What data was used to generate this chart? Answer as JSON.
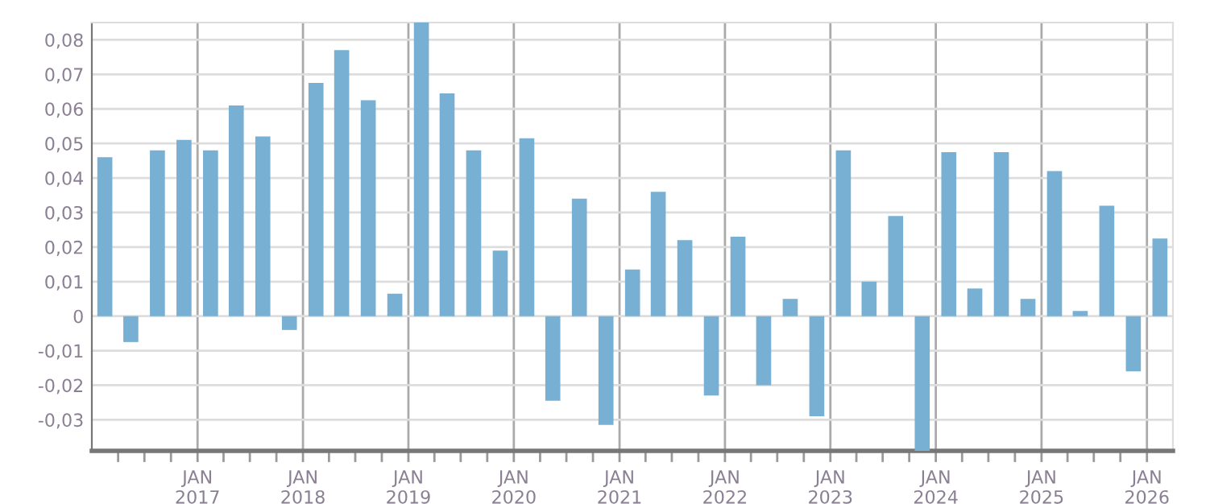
{
  "chart_data": {
    "type": "bar",
    "x": [
      "2016-02-15",
      "2016-05-15",
      "2016-08-15",
      "2016-11-15",
      "2017-02-15",
      "2017-05-15",
      "2017-08-15",
      "2017-11-15",
      "2018-02-15",
      "2018-05-15",
      "2018-08-15",
      "2018-11-15",
      "2019-02-15",
      "2019-05-15",
      "2019-08-15",
      "2019-11-15",
      "2020-02-15",
      "2020-05-15",
      "2020-08-15",
      "2020-11-15",
      "2021-02-15",
      "2021-05-15",
      "2021-08-15",
      "2021-11-15",
      "2022-02-15",
      "2022-05-15",
      "2022-08-15",
      "2022-11-15",
      "2023-02-15",
      "2023-05-15",
      "2023-08-15",
      "2023-11-15",
      "2024-02-15",
      "2024-05-15",
      "2024-08-15",
      "2024-11-15",
      "2025-02-15",
      "2025-05-15",
      "2025-08-15",
      "2025-11-15",
      "2026-02-15"
    ],
    "series": [
      {
        "color": "#77b0d2",
        "values": [
          0.046,
          -0.0075,
          0.048,
          0.051,
          0.048,
          0.061,
          0.052,
          -0.004,
          0.0675,
          0.077,
          0.0625,
          0.0065,
          0.085,
          0.0645,
          0.048,
          0.019,
          0.0515,
          -0.0245,
          0.034,
          -0.0315,
          0.0135,
          0.036,
          0.022,
          -0.023,
          0.023,
          -0.02,
          0.005,
          -0.029,
          0.048,
          0.01,
          0.029,
          -0.039,
          0.0475,
          0.008,
          0.0475,
          0.005,
          0.042,
          0.0015,
          0.032,
          -0.016,
          0.0225
        ]
      }
    ],
    "xlim": [
      "2016-01-01",
      "2026-04-01"
    ],
    "xticks": [
      {
        "value": "2016-04-01",
        "label": null
      },
      {
        "value": "2016-07-01",
        "label": null
      },
      {
        "value": "2016-10-01",
        "label": null
      },
      {
        "value": "2017-01-01",
        "label": "JAN\n2017"
      },
      {
        "value": "2017-04-01",
        "label": null
      },
      {
        "value": "2017-07-01",
        "label": null
      },
      {
        "value": "2017-10-01",
        "label": null
      },
      {
        "value": "2018-01-01",
        "label": "JAN\n2018"
      },
      {
        "value": "2018-04-01",
        "label": null
      },
      {
        "value": "2018-07-01",
        "label": null
      },
      {
        "value": "2018-10-01",
        "label": null
      },
      {
        "value": "2019-01-01",
        "label": "JAN\n2019"
      },
      {
        "value": "2019-04-01",
        "label": null
      },
      {
        "value": "2019-07-01",
        "label": null
      },
      {
        "value": "2019-10-01",
        "label": null
      },
      {
        "value": "2020-01-01",
        "label": "JAN\n2020"
      },
      {
        "value": "2020-04-01",
        "label": null
      },
      {
        "value": "2020-07-01",
        "label": null
      },
      {
        "value": "2020-10-01",
        "label": null
      },
      {
        "value": "2021-01-01",
        "label": "JAN\n2021"
      },
      {
        "value": "2021-04-01",
        "label": null
      },
      {
        "value": "2021-07-01",
        "label": null
      },
      {
        "value": "2021-10-01",
        "label": null
      },
      {
        "value": "2022-01-01",
        "label": "JAN\n2022"
      },
      {
        "value": "2022-04-01",
        "label": null
      },
      {
        "value": "2022-07-01",
        "label": null
      },
      {
        "value": "2022-10-01",
        "label": null
      },
      {
        "value": "2023-01-01",
        "label": "JAN\n2023"
      },
      {
        "value": "2023-04-01",
        "label": null
      },
      {
        "value": "2023-07-01",
        "label": null
      },
      {
        "value": "2023-10-01",
        "label": null
      },
      {
        "value": "2024-01-01",
        "label": "JAN\n2024"
      },
      {
        "value": "2024-04-01",
        "label": null
      },
      {
        "value": "2024-07-01",
        "label": null
      },
      {
        "value": "2024-10-01",
        "label": null
      },
      {
        "value": "2025-01-01",
        "label": "JAN\n2025"
      },
      {
        "value": "2025-04-01",
        "label": null
      },
      {
        "value": "2025-07-01",
        "label": null
      },
      {
        "value": "2025-10-01",
        "label": null
      },
      {
        "value": "2026-01-01",
        "label": "JAN\n2026"
      }
    ],
    "ylim": [
      -0.039,
      0.085
    ],
    "yticks": [
      {
        "value": -0.03,
        "label": "-0,03"
      },
      {
        "value": -0.02,
        "label": "-0,02"
      },
      {
        "value": -0.01,
        "label": "-0,01"
      },
      {
        "value": 0,
        "label": "0"
      },
      {
        "value": 0.01,
        "label": "0,01"
      },
      {
        "value": 0.02,
        "label": "0,02"
      },
      {
        "value": 0.03,
        "label": "0,03"
      },
      {
        "value": 0.04,
        "label": "0,04"
      },
      {
        "value": 0.05,
        "label": "0,05"
      },
      {
        "value": 0.06,
        "label": "0,06"
      },
      {
        "value": 0.07,
        "label": "0,07"
      },
      {
        "value": 0.08,
        "label": "0,08"
      }
    ],
    "grid": true
  }
}
